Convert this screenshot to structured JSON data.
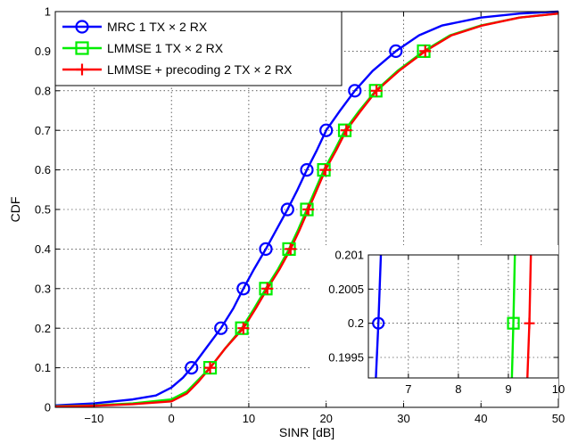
{
  "chart_data": {
    "type": "line",
    "xlabel": "SINR [dB]",
    "ylabel": "CDF",
    "xlim": [
      -15,
      50
    ],
    "ylim": [
      0,
      1
    ],
    "x_ticks": [
      -10,
      0,
      10,
      20,
      30,
      40,
      50
    ],
    "y_ticks": [
      0,
      0.1,
      0.2,
      0.3,
      0.4,
      0.5,
      0.6,
      0.7,
      0.8,
      0.9,
      1
    ],
    "x_tick_labels": [
      "−10",
      "0",
      "10",
      "20",
      "30",
      "40",
      "50"
    ],
    "y_tick_labels": [
      "0",
      "0.1",
      "0.2",
      "0.3",
      "0.4",
      "0.5",
      "0.6",
      "0.7",
      "0.8",
      "0.9",
      "1"
    ],
    "grid": true,
    "legend_position": "top-left",
    "series": [
      {
        "name": "MRC 1 TX × 2 RX",
        "color": "#0000ff",
        "marker": "circle",
        "x": [
          -15,
          -10,
          -5,
          -2,
          0,
          1.5,
          2.6,
          4.5,
          6.4,
          8,
          9.3,
          10.7,
          12.2,
          13.6,
          15,
          16.3,
          17.5,
          18.8,
          20,
          21.8,
          23.7,
          26,
          29,
          32,
          35,
          40,
          45,
          50
        ],
        "y": [
          0.005,
          0.01,
          0.02,
          0.03,
          0.05,
          0.075,
          0.1,
          0.15,
          0.2,
          0.25,
          0.3,
          0.35,
          0.4,
          0.45,
          0.5,
          0.55,
          0.6,
          0.65,
          0.7,
          0.75,
          0.8,
          0.85,
          0.9,
          0.94,
          0.965,
          0.985,
          0.995,
          1.0
        ],
        "marker_x": [
          2.6,
          6.4,
          9.3,
          12.2,
          15,
          17.5,
          20,
          23.7,
          29
        ],
        "marker_y": [
          0.1,
          0.2,
          0.3,
          0.4,
          0.5,
          0.6,
          0.7,
          0.8,
          0.9
        ]
      },
      {
        "name": "LMMSE 1 TX × 2 RX",
        "color": "#00ee00",
        "marker": "square",
        "x": [
          -15,
          -10,
          -5,
          0,
          2,
          3.5,
          5,
          7,
          9.1,
          10.7,
          12.2,
          13.8,
          15.2,
          16.4,
          17.5,
          18.6,
          19.7,
          21.1,
          22.4,
          24.3,
          26.4,
          29.2,
          32.6,
          36,
          40,
          45,
          50
        ],
        "y": [
          0.003,
          0.005,
          0.01,
          0.02,
          0.04,
          0.07,
          0.1,
          0.15,
          0.2,
          0.25,
          0.3,
          0.35,
          0.4,
          0.45,
          0.5,
          0.55,
          0.6,
          0.65,
          0.7,
          0.75,
          0.8,
          0.85,
          0.9,
          0.94,
          0.965,
          0.985,
          0.995
        ],
        "marker_x": [
          5,
          9.1,
          12.2,
          15.2,
          17.5,
          19.7,
          22.4,
          26.4,
          32.6
        ],
        "marker_y": [
          0.1,
          0.2,
          0.3,
          0.4,
          0.5,
          0.6,
          0.7,
          0.8,
          0.9
        ]
      },
      {
        "name": "LMMSE + precoding 2 TX × 2 RX",
        "color": "#ff0000",
        "marker": "plus",
        "x": [
          -15,
          -10,
          -5,
          0,
          2,
          3.5,
          5,
          7,
          9.3,
          10.9,
          12.4,
          14,
          15.4,
          16.6,
          17.7,
          18.8,
          19.9,
          21.3,
          22.6,
          24.5,
          26.5,
          29.4,
          32.8,
          36.2,
          40.2,
          45,
          50
        ],
        "y": [
          0.002,
          0.004,
          0.008,
          0.015,
          0.035,
          0.065,
          0.1,
          0.15,
          0.2,
          0.25,
          0.3,
          0.35,
          0.4,
          0.45,
          0.5,
          0.55,
          0.6,
          0.65,
          0.7,
          0.75,
          0.8,
          0.85,
          0.9,
          0.94,
          0.965,
          0.985,
          0.995
        ],
        "marker_x": [
          5,
          9.3,
          12.4,
          15.4,
          17.7,
          19.9,
          22.6,
          26.5,
          32.8
        ],
        "marker_y": [
          0.1,
          0.2,
          0.3,
          0.4,
          0.5,
          0.6,
          0.7,
          0.8,
          0.9
        ]
      }
    ],
    "inset": {
      "xlim": [
        6.2,
        10
      ],
      "ylim": [
        0.1992,
        0.201
      ],
      "x_ticks": [
        7,
        8,
        9,
        10
      ],
      "y_ticks": [
        0.1995,
        0.2,
        0.2005,
        0.201
      ],
      "x_tick_labels": [
        "7",
        "8",
        "9",
        "10"
      ],
      "y_tick_labels": [
        "0.1995",
        "0.2",
        "0.2005",
        "0.201"
      ],
      "grid": true,
      "series": [
        {
          "name": "MRC 1 TX × 2 RX",
          "color": "#0000ff",
          "marker": "circle",
          "x": [
            6.45,
            6.4,
            6.35
          ],
          "y": [
            0.201,
            0.2,
            0.1992
          ],
          "marker_x": 6.4,
          "marker_y": 0.2
        },
        {
          "name": "LMMSE 1 TX × 2 RX",
          "color": "#00ee00",
          "marker": "square",
          "x": [
            9.13,
            9.1,
            9.07
          ],
          "y": [
            0.201,
            0.2,
            0.1992
          ],
          "marker_x": 9.1,
          "marker_y": 0.2
        },
        {
          "name": "LMMSE + precoding 2 TX × 2 RX",
          "color": "#ff0000",
          "marker": "plus",
          "x": [
            9.45,
            9.42,
            9.38
          ],
          "y": [
            0.201,
            0.2,
            0.1992
          ],
          "marker_x": 9.42,
          "marker_y": 0.2
        }
      ]
    }
  }
}
